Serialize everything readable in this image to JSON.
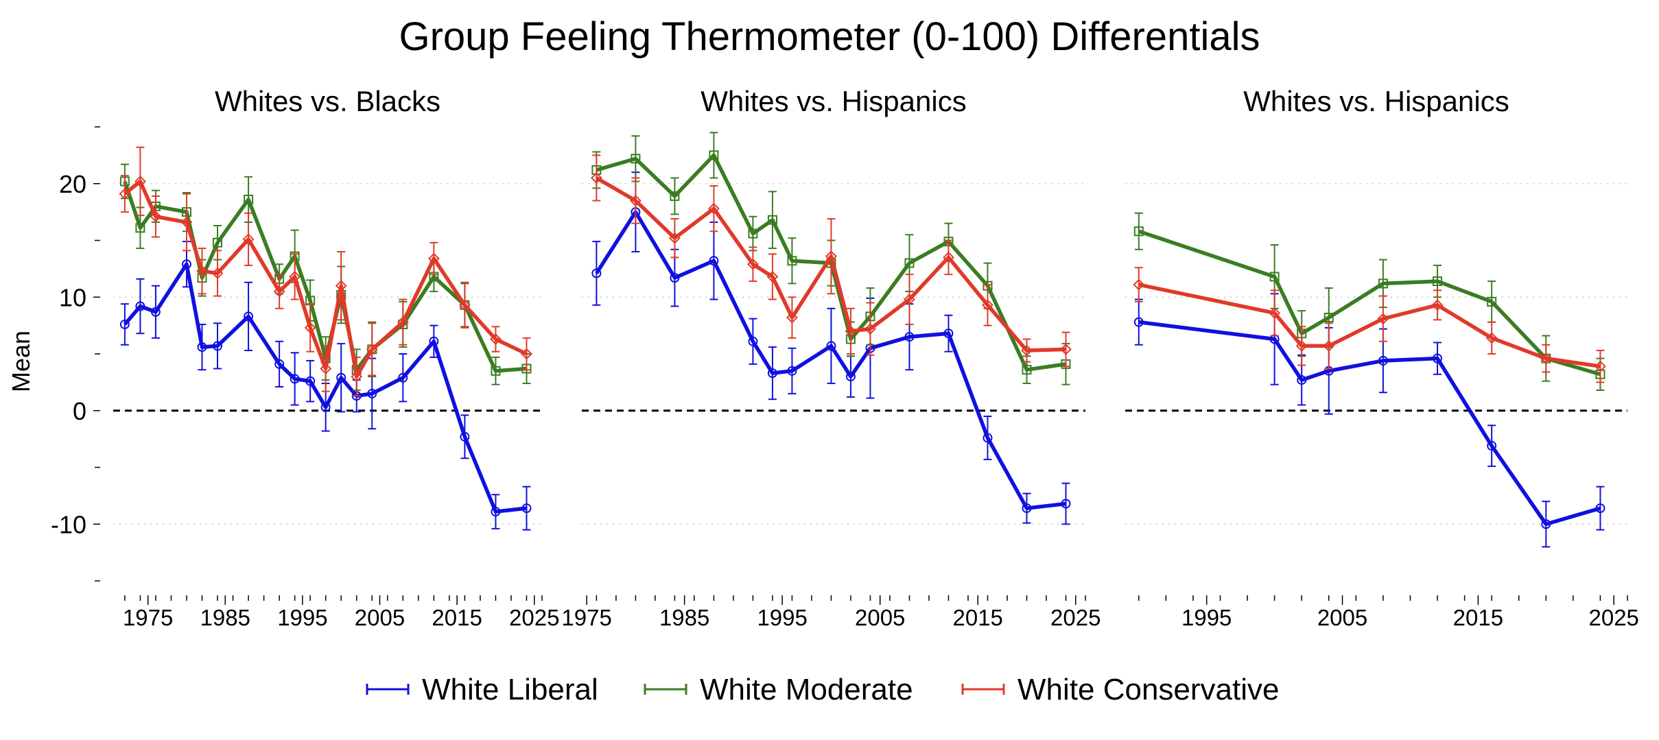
{
  "colors": {
    "liberal": "#1010e0",
    "moderate": "#3a7d22",
    "conservative": "#e03a2a",
    "zero_line": "#000000",
    "grid": "#c8c8c8"
  },
  "chart_data": {
    "type": "line",
    "title": "Group Feeling Thermometer (0-100) Differentials",
    "ylabel": "Mean",
    "ylim": [
      -15,
      25
    ],
    "yticks_labeled": [
      -10,
      0,
      10,
      20
    ],
    "yticks_labels": [
      "-10",
      "0",
      "10",
      "20"
    ],
    "yticks_minor": [
      -15,
      -5,
      5,
      15,
      25
    ],
    "grid": true,
    "reference_line": 0,
    "legend": {
      "placement": "bottom-center",
      "entries": [
        "White Liberal",
        "White Moderate",
        "White Conservative"
      ]
    },
    "panels": [
      {
        "title": "Whites vs. Blacks",
        "xlim": [
          1970.5,
          2026
        ],
        "xticks": [
          1975,
          1985,
          1995,
          2005,
          2015,
          2025
        ],
        "xtick_labels": [
          "1975",
          "1985",
          "1995",
          "2005",
          "2015",
          "2025"
        ],
        "series": [
          {
            "name": "White Liberal",
            "x": [
              1972,
              1974,
              1976,
              1980,
              1982,
              1984,
              1988,
              1992,
              1994,
              1996,
              1998,
              2000,
              2002,
              2004,
              2008,
              2012,
              2016,
              2020,
              2024
            ],
            "y": [
              7.6,
              9.2,
              8.7,
              12.9,
              5.6,
              5.7,
              8.3,
              4.1,
              2.8,
              2.6,
              0.3,
              2.9,
              1.3,
              1.5,
              2.9,
              6.1,
              -2.3,
              -8.9,
              -8.6
            ],
            "err": [
              1.8,
              2.4,
              2.3,
              2.0,
              2.0,
              2.0,
              3.0,
              2.0,
              2.3,
              1.8,
              2.1,
              3.0,
              1.4,
              3.1,
              2.1,
              1.4,
              1.9,
              1.5,
              1.9
            ]
          },
          {
            "name": "White Moderate",
            "x": [
              1972,
              1974,
              1976,
              1980,
              1982,
              1984,
              1988,
              1992,
              1994,
              1996,
              1998,
              2000,
              2002,
              2004,
              2008,
              2012,
              2016,
              2020,
              2024
            ],
            "y": [
              20.2,
              16.1,
              18.0,
              17.5,
              11.7,
              14.8,
              18.6,
              11.6,
              13.6,
              9.7,
              4.6,
              10.2,
              3.6,
              5.4,
              7.6,
              11.8,
              9.3,
              3.5,
              3.7
            ],
            "err": [
              1.5,
              1.8,
              1.4,
              1.7,
              1.6,
              1.5,
              2.0,
              1.3,
              2.3,
              1.8,
              1.9,
              2.5,
              1.8,
              2.4,
              2.0,
              1.3,
              1.9,
              1.2,
              1.3
            ]
          },
          {
            "name": "White Conservative",
            "x": [
              1972,
              1974,
              1976,
              1980,
              1982,
              1984,
              1988,
              1992,
              1994,
              1996,
              1998,
              2000,
              2002,
              2004,
              2008,
              2012,
              2016,
              2020,
              2024
            ],
            "y": [
              19.1,
              20.2,
              17.1,
              16.6,
              12.3,
              12.1,
              15.1,
              10.5,
              11.8,
              7.3,
              3.7,
              11.0,
              3.0,
              5.4,
              7.8,
              13.4,
              9.3,
              6.3,
              5.0
            ],
            "err": [
              1.6,
              3.0,
              1.8,
              2.5,
              2.0,
              2.0,
              2.3,
              1.5,
              2.0,
              2.1,
              2.0,
              3.0,
              1.7,
              2.3,
              2.0,
              1.4,
              2.0,
              1.1,
              1.4
            ]
          }
        ]
      },
      {
        "title": "Whites vs. Hispanics",
        "xlim": [
          1974.5,
          2026
        ],
        "xticks": [
          1975,
          1985,
          1995,
          2005,
          2015,
          2025
        ],
        "xtick_labels": [
          "1975",
          "1985",
          "1995",
          "2005",
          "2015",
          "2025"
        ],
        "series": [
          {
            "name": "White Liberal",
            "x": [
              1976,
              1980,
              1984,
              1988,
              1992,
              1994,
              1996,
              2000,
              2002,
              2004,
              2008,
              2012,
              2016,
              2020,
              2024
            ],
            "y": [
              12.1,
              17.5,
              11.7,
              13.2,
              6.1,
              3.3,
              3.5,
              5.7,
              3.0,
              5.5,
              6.5,
              6.8,
              -2.4,
              -8.6,
              -8.2
            ],
            "err": [
              2.8,
              3.5,
              2.5,
              3.4,
              2.0,
              2.3,
              2.0,
              3.3,
              1.8,
              4.4,
              2.9,
              1.6,
              1.9,
              1.3,
              1.8
            ]
          },
          {
            "name": "White Moderate",
            "x": [
              1976,
              1980,
              1984,
              1988,
              1992,
              1994,
              1996,
              2000,
              2002,
              2004,
              2008,
              2012,
              2016,
              2020,
              2024
            ],
            "y": [
              21.2,
              22.2,
              18.9,
              22.5,
              15.6,
              16.8,
              13.2,
              13.0,
              6.3,
              8.3,
              13.0,
              14.9,
              11.0,
              3.6,
              4.1
            ],
            "err": [
              1.6,
              2.0,
              1.6,
              2.0,
              1.5,
              2.5,
              2.0,
              2.0,
              1.5,
              2.5,
              2.5,
              1.6,
              2.0,
              1.2,
              1.8
            ]
          },
          {
            "name": "White Conservative",
            "x": [
              1976,
              1980,
              1984,
              1988,
              1992,
              1994,
              1996,
              2000,
              2002,
              2004,
              2008,
              2012,
              2016,
              2020,
              2024
            ],
            "y": [
              20.5,
              18.5,
              15.2,
              17.8,
              12.9,
              11.8,
              8.2,
              13.6,
              7.0,
              7.2,
              9.8,
              13.5,
              9.3,
              5.3,
              5.4
            ],
            "err": [
              2.0,
              2.0,
              1.7,
              2.0,
              1.5,
              2.0,
              1.8,
              3.3,
              2.0,
              2.3,
              2.2,
              1.5,
              1.8,
              1.0,
              1.5
            ]
          }
        ]
      },
      {
        "title": "Whites vs. Hispanics",
        "xlim": [
          1989,
          2026
        ],
        "xticks": [
          1995,
          2005,
          2015,
          2025
        ],
        "xtick_labels": [
          "1995",
          "2005",
          "2015",
          "2025"
        ],
        "series": [
          {
            "name": "White Liberal",
            "x": [
              1990,
              2000,
              2002,
              2004,
              2008,
              2012,
              2016,
              2020,
              2024
            ],
            "y": [
              7.8,
              6.3,
              2.7,
              3.5,
              4.4,
              4.6,
              -3.1,
              -10.0,
              -8.6
            ],
            "err": [
              2.0,
              4.0,
              2.2,
              3.8,
              2.8,
              1.4,
              1.8,
              2.0,
              1.9
            ]
          },
          {
            "name": "White Moderate",
            "x": [
              1990,
              2000,
              2002,
              2004,
              2008,
              2012,
              2016,
              2020,
              2024
            ],
            "y": [
              15.8,
              11.8,
              6.8,
              8.2,
              11.2,
              11.4,
              9.6,
              4.6,
              3.2
            ],
            "err": [
              1.6,
              2.8,
              2.0,
              2.6,
              2.1,
              1.4,
              1.8,
              2.0,
              1.4
            ]
          },
          {
            "name": "White Conservative",
            "x": [
              1990,
              2000,
              2002,
              2004,
              2008,
              2012,
              2016,
              2020,
              2024
            ],
            "y": [
              11.1,
              8.6,
              5.7,
              5.7,
              8.1,
              9.3,
              6.4,
              4.6,
              3.9
            ],
            "err": [
              1.5,
              2.0,
              1.7,
              2.0,
              2.0,
              1.3,
              1.4,
              1.2,
              1.4
            ]
          }
        ]
      }
    ]
  }
}
